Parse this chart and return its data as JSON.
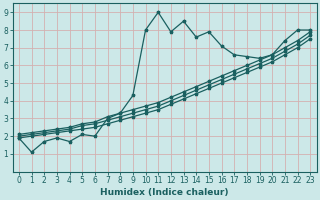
{
  "xlabel": "Humidex (Indice chaleur)",
  "xlim": [
    -0.5,
    23.5
  ],
  "ylim": [
    0,
    9.5
  ],
  "xticks": [
    0,
    1,
    2,
    3,
    4,
    5,
    6,
    7,
    8,
    9,
    10,
    11,
    12,
    13,
    14,
    15,
    16,
    17,
    18,
    19,
    20,
    21,
    22,
    23
  ],
  "yticks": [
    1,
    2,
    3,
    4,
    5,
    6,
    7,
    8,
    9
  ],
  "bg_color": "#cce8e8",
  "line_color": "#1a6060",
  "grid_color": "#b0d4d4",
  "series1_x": [
    0,
    1,
    2,
    3,
    4,
    5,
    6,
    7,
    8,
    9,
    10,
    11,
    12,
    13,
    14,
    15,
    16,
    17,
    18,
    19,
    20,
    21,
    22,
    23
  ],
  "series1_y": [
    1.9,
    1.1,
    1.7,
    1.9,
    1.7,
    2.1,
    2.0,
    3.0,
    3.3,
    4.3,
    8.0,
    9.0,
    7.9,
    8.5,
    7.6,
    7.9,
    7.1,
    6.6,
    6.5,
    6.4,
    6.6,
    7.4,
    8.0,
    8.0
  ],
  "series2_x": [
    0,
    1,
    2,
    3,
    4,
    5,
    6,
    7,
    8,
    9,
    10,
    11,
    12,
    13,
    14,
    15,
    16,
    17,
    18,
    19,
    20,
    21,
    22,
    23
  ],
  "series2_y": [
    2.0,
    2.1,
    2.2,
    2.3,
    2.4,
    2.6,
    2.7,
    2.9,
    3.1,
    3.3,
    3.5,
    3.7,
    4.0,
    4.3,
    4.6,
    4.9,
    5.2,
    5.5,
    5.8,
    6.1,
    6.4,
    6.8,
    7.2,
    7.7
  ],
  "series3_x": [
    0,
    1,
    2,
    3,
    4,
    5,
    6,
    7,
    8,
    9,
    10,
    11,
    12,
    13,
    14,
    15,
    16,
    17,
    18,
    19,
    20,
    21,
    22,
    23
  ],
  "series3_y": [
    1.9,
    2.0,
    2.1,
    2.2,
    2.3,
    2.4,
    2.5,
    2.7,
    2.9,
    3.1,
    3.3,
    3.5,
    3.8,
    4.1,
    4.4,
    4.7,
    5.0,
    5.3,
    5.6,
    5.9,
    6.2,
    6.6,
    7.0,
    7.5
  ],
  "series4_x": [
    0,
    1,
    2,
    3,
    4,
    5,
    6,
    7,
    8,
    9,
    10,
    11,
    12,
    13,
    14,
    15,
    16,
    17,
    18,
    19,
    20,
    21,
    22,
    23
  ],
  "series4_y": [
    2.1,
    2.2,
    2.3,
    2.4,
    2.5,
    2.7,
    2.8,
    3.1,
    3.3,
    3.5,
    3.7,
    3.9,
    4.2,
    4.5,
    4.8,
    5.1,
    5.4,
    5.7,
    6.0,
    6.3,
    6.6,
    7.0,
    7.4,
    7.9
  ]
}
